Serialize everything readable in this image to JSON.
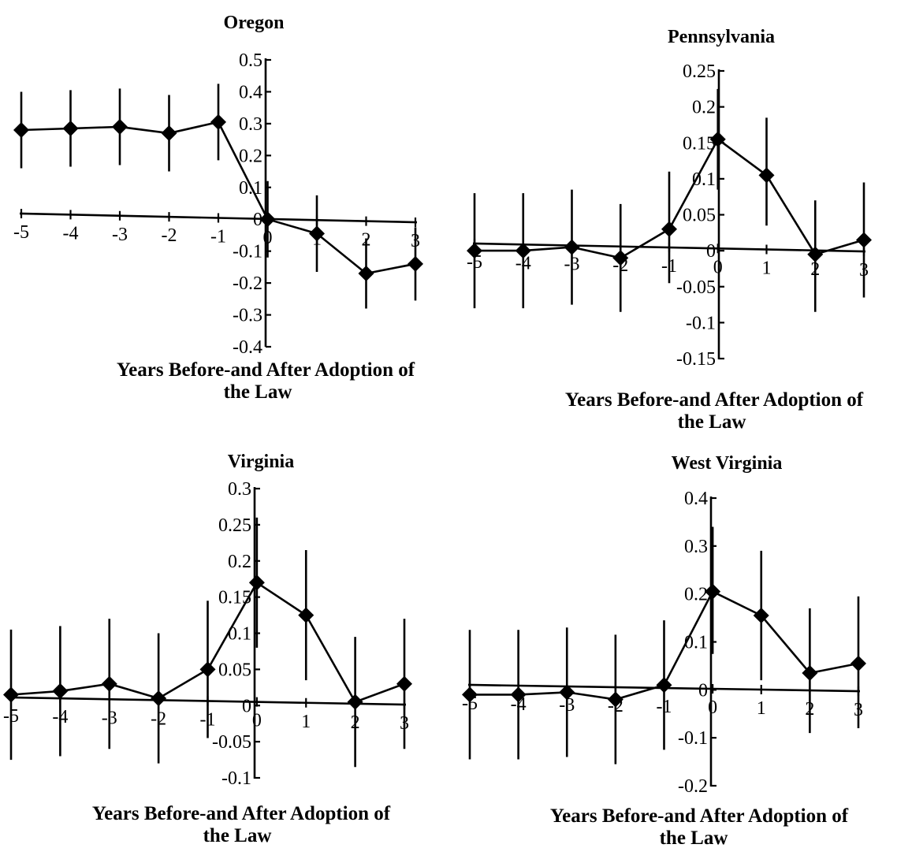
{
  "chart_data": [
    {
      "type": "line",
      "title": "Oregon",
      "xlabel": "Years Before-and After Adoption of the Law",
      "xlabel_lines": [
        "Years Before-and After Adoption of",
        "the Law"
      ],
      "ylabel": "",
      "x": [
        -5,
        -4,
        -3,
        -2,
        -1,
        0,
        1,
        2,
        3
      ],
      "x_tick_labels": [
        "-5",
        "-4",
        "-3",
        "-2",
        "-1",
        "0",
        "1",
        "2",
        "3"
      ],
      "y_ticks": [
        -0.4,
        -0.3,
        -0.2,
        -0.1,
        0,
        0.1,
        0.2,
        0.3,
        0.4,
        0.5
      ],
      "y_tick_labels": [
        "-0.4",
        "-0.3",
        "-0.2",
        "-0.1",
        "0",
        "0.1",
        "0.2",
        "0.3",
        "0.4",
        "0.5"
      ],
      "ylim": [
        -0.4,
        0.5
      ],
      "series": [
        {
          "values": [
            0.28,
            0.285,
            0.29,
            0.27,
            0.305,
            0.0,
            -0.045,
            -0.17,
            -0.14
          ],
          "err_low": [
            0.16,
            0.165,
            0.17,
            0.15,
            0.185,
            -0.12,
            -0.165,
            -0.28,
            -0.255
          ],
          "err_high": [
            0.4,
            0.405,
            0.41,
            0.39,
            0.425,
            0.12,
            0.075,
            -0.06,
            -0.025
          ]
        }
      ],
      "grid": false,
      "legend": "none",
      "marker": "diamond",
      "color": "#000000"
    },
    {
      "type": "line",
      "title": "Pennsylvania",
      "xlabel": "Years Before-and After Adoption of the Law",
      "xlabel_lines": [
        "Years Before-and After Adoption of",
        "the Law"
      ],
      "ylabel": "",
      "x": [
        -5,
        -4,
        -3,
        -2,
        -1,
        0,
        1,
        2,
        3
      ],
      "x_tick_labels": [
        "-5",
        "-4",
        "-3",
        "-2",
        "-1",
        "0",
        "1",
        "2",
        "3"
      ],
      "y_ticks": [
        -0.15,
        -0.1,
        -0.05,
        0,
        0.05,
        0.1,
        0.15,
        0.2,
        0.25
      ],
      "y_tick_labels": [
        "-0.15",
        "-0.1",
        "-0.05",
        "0",
        "0.05",
        "0.1",
        "0.15",
        "0.2",
        "0.25"
      ],
      "ylim": [
        -0.15,
        0.25
      ],
      "series": [
        {
          "values": [
            0.0,
            0.0,
            0.005,
            -0.01,
            0.03,
            0.155,
            0.105,
            -0.005,
            0.015
          ],
          "err_low": [
            -0.08,
            -0.08,
            -0.075,
            -0.085,
            -0.045,
            0.085,
            0.035,
            -0.085,
            -0.065
          ],
          "err_high": [
            0.08,
            0.08,
            0.085,
            0.065,
            0.11,
            0.225,
            0.185,
            0.07,
            0.095
          ]
        }
      ],
      "grid": false,
      "legend": "none",
      "marker": "diamond",
      "color": "#000000"
    },
    {
      "type": "line",
      "title": "Virginia",
      "xlabel": "Years Before-and After Adoption of the Law",
      "xlabel_lines": [
        "Years Before-and After Adoption of",
        "the Law"
      ],
      "ylabel": "",
      "x": [
        -5,
        -4,
        -3,
        -2,
        -1,
        0,
        1,
        2,
        3
      ],
      "x_tick_labels": [
        "-5",
        "-4",
        "-3",
        "-2",
        "-1",
        "0",
        "1",
        "2",
        "3"
      ],
      "y_ticks": [
        -0.1,
        -0.05,
        0,
        0.05,
        0.1,
        0.15,
        0.2,
        0.25,
        0.3
      ],
      "y_tick_labels": [
        "-0.1",
        "-0.05",
        "0",
        "0.05",
        "0.1",
        "0.15",
        "0.2",
        "0.25",
        "0.3"
      ],
      "ylim": [
        -0.1,
        0.3
      ],
      "series": [
        {
          "values": [
            0.015,
            0.02,
            0.03,
            0.01,
            0.05,
            0.17,
            0.125,
            0.005,
            0.03
          ],
          "err_low": [
            -0.075,
            -0.07,
            -0.06,
            -0.08,
            -0.045,
            0.08,
            0.035,
            -0.085,
            -0.06
          ],
          "err_high": [
            0.105,
            0.11,
            0.12,
            0.1,
            0.145,
            0.26,
            0.215,
            0.095,
            0.12
          ]
        }
      ],
      "grid": false,
      "legend": "none",
      "marker": "diamond",
      "color": "#000000"
    },
    {
      "type": "line",
      "title": "West Virginia",
      "xlabel": "Years Before-and After Adoption of the Law",
      "xlabel_lines": [
        "Years Before-and After Adoption of",
        "the Law"
      ],
      "ylabel": "",
      "x": [
        -5,
        -4,
        -3,
        -2,
        -1,
        0,
        1,
        2,
        3
      ],
      "x_tick_labels": [
        "-5",
        "-4",
        "-3",
        "-2",
        "-1",
        "0",
        "1",
        "2",
        "3"
      ],
      "y_ticks": [
        -0.2,
        -0.1,
        0,
        0.1,
        0.2,
        0.3,
        0.4
      ],
      "y_tick_labels": [
        "-0.2",
        "-0.1",
        "0",
        "0.1",
        "0.2",
        "0.3",
        "0.4"
      ],
      "ylim": [
        -0.2,
        0.4
      ],
      "series": [
        {
          "values": [
            -0.01,
            -0.01,
            -0.005,
            -0.02,
            0.01,
            0.205,
            0.155,
            0.035,
            0.055
          ],
          "err_low": [
            -0.145,
            -0.145,
            -0.14,
            -0.155,
            -0.125,
            0.075,
            0.02,
            -0.09,
            -0.08
          ],
          "err_high": [
            0.125,
            0.125,
            0.13,
            0.115,
            0.145,
            0.34,
            0.29,
            0.17,
            0.195
          ]
        }
      ],
      "grid": false,
      "legend": "none",
      "marker": "diamond",
      "color": "#000000"
    }
  ]
}
